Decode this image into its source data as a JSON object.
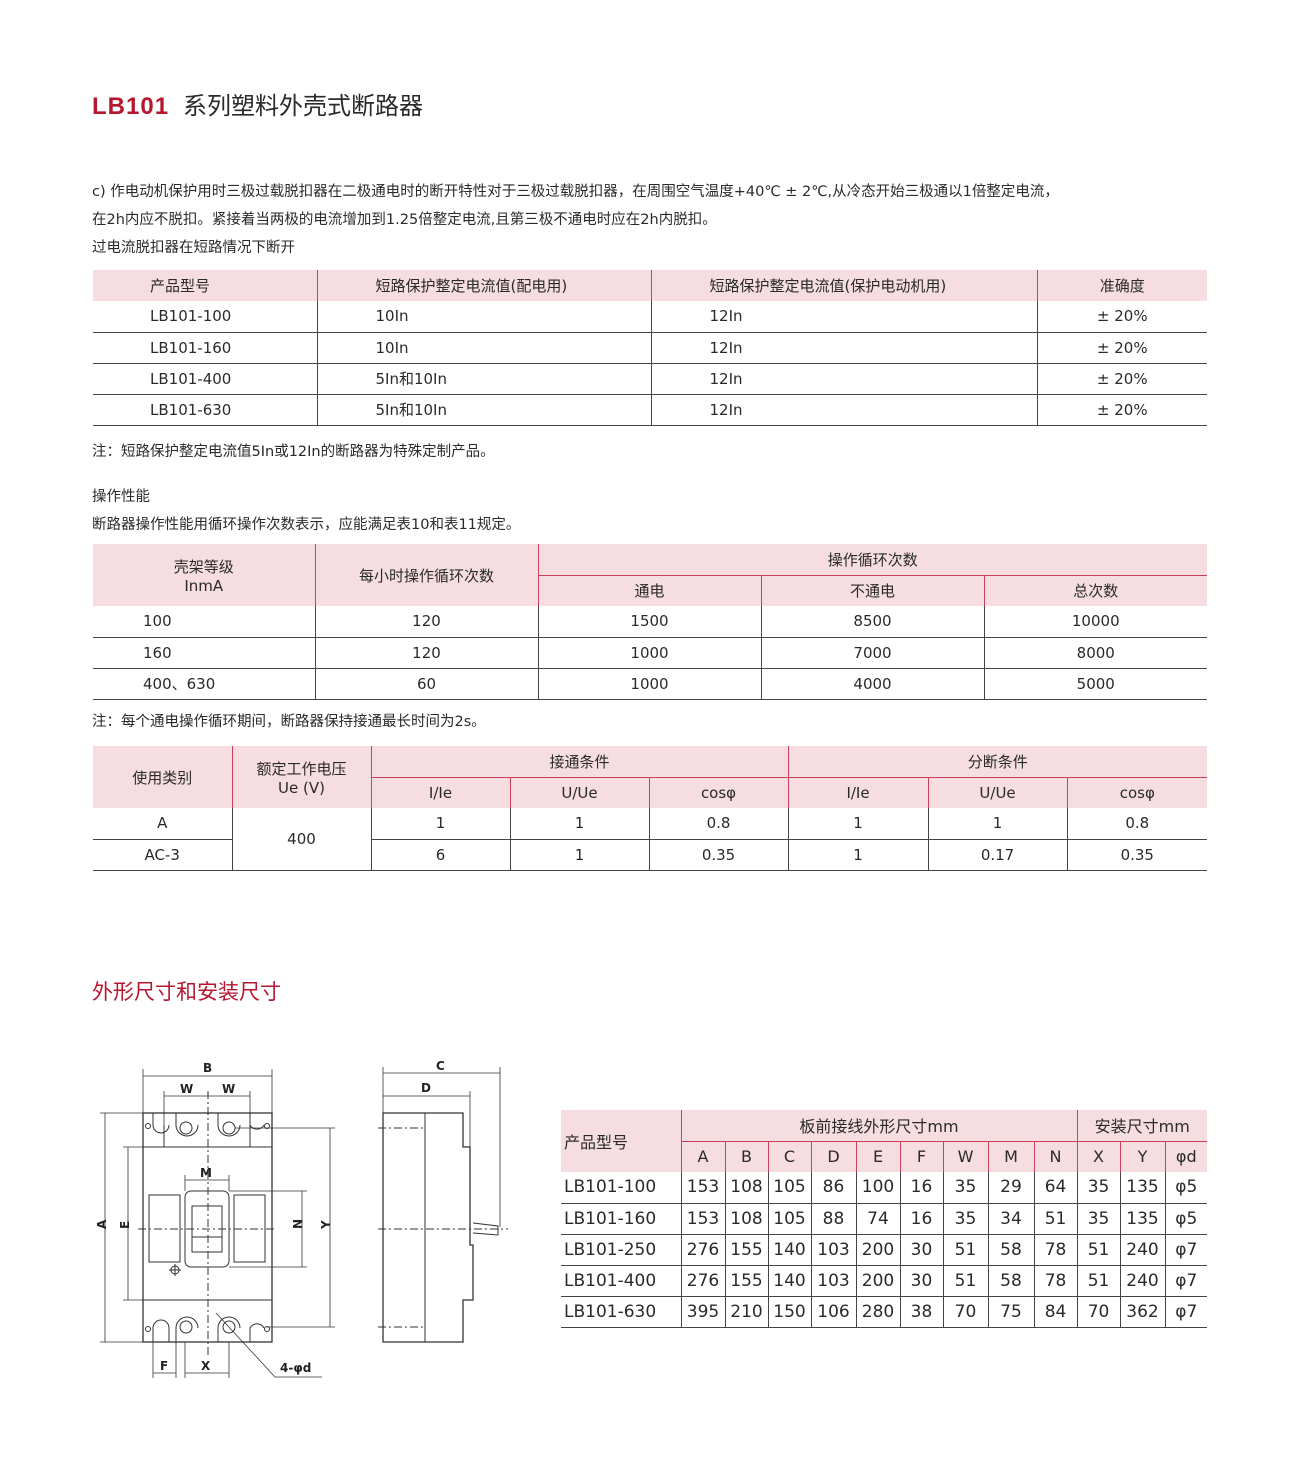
{
  "header": {
    "model": "LB101",
    "title": "系列塑料外壳式断路器"
  },
  "intro": {
    "line1": "c) 作电动机保护用时三极过载脱扣器在二极通电时的断开特性对于三极过载脱扣器，在周围空气温度+40℃ ± 2℃,从冷态开始三极通以1倍整定电流，",
    "line2": "在2h内应不脱扣。紧接着当两极的电流增加到1.25倍整定电流,且第三极不通电时应在2h内脱扣。",
    "line3": "过电流脱扣器在短路情况下断开"
  },
  "table1": {
    "headers": [
      "产品型号",
      "短路保护整定电流值(配电用)",
      "短路保护整定电流值(保护电动机用)",
      "准确度"
    ],
    "rows": [
      [
        "LB101-100",
        "10In",
        "12In",
        "± 20%"
      ],
      [
        "LB101-160",
        "10In",
        "12In",
        "± 20%"
      ],
      [
        "LB101-400",
        "5In和10In",
        "12In",
        "± 20%"
      ],
      [
        "LB101-630",
        "5In和10In",
        "12In",
        "± 20%"
      ]
    ],
    "note": "注：短路保护整定电流值5In或12In的断路器为特殊定制产品。"
  },
  "operation": {
    "heading": "操作性能",
    "desc": "断路器操作性能用循环操作次数表示，应能满足表10和表11规定。"
  },
  "table2": {
    "h_frame": "壳架等级",
    "h_frame2": "InmA",
    "h_perhour": "每小时操作循环次数",
    "h_cycles": "操作循环次数",
    "sub": [
      "通电",
      "不通电",
      "总次数"
    ],
    "rows": [
      [
        "100",
        "120",
        "1500",
        "8500",
        "10000"
      ],
      [
        "160",
        "120",
        "1000",
        "7000",
        "8000"
      ],
      [
        "400、630",
        "60",
        "1000",
        "4000",
        "5000"
      ]
    ],
    "note": "注：每个通电操作循环期间，断路器保持接通最长时间为2s。"
  },
  "table3": {
    "h_category": "使用类别",
    "h_voltage": "额定工作电压",
    "h_voltage2": "Ue (V)",
    "h_make": "接通条件",
    "h_break": "分断条件",
    "sub": [
      "I/Ie",
      "U/Ue",
      "cosφ",
      "I/Ie",
      "U/Ue",
      "cosφ"
    ],
    "voltage": "400",
    "rows": [
      [
        "A",
        "1",
        "1",
        "0.8",
        "1",
        "1",
        "0.8"
      ],
      [
        "AC-3",
        "6",
        "1",
        "0.35",
        "1",
        "0.17",
        "0.35"
      ]
    ]
  },
  "section2": {
    "title": "外形尺寸和安装尺寸"
  },
  "diagram": {
    "labels": {
      "B": "B",
      "W1": "W",
      "W2": "W",
      "A": "A",
      "E": "E",
      "M": "M",
      "N": "N",
      "Y": "Y",
      "F": "F",
      "X": "X",
      "C": "C",
      "D": "D",
      "hole": "4-φd"
    }
  },
  "table4": {
    "h_model": "产品型号",
    "h_outline": "板前接线外形尺寸mm",
    "h_mount": "安装尺寸mm",
    "sub": [
      "A",
      "B",
      "C",
      "D",
      "E",
      "F",
      "W",
      "M",
      "N",
      "X",
      "Y",
      "φd"
    ],
    "rows": [
      [
        "LB101-100",
        "153",
        "108",
        "105",
        "86",
        "100",
        "16",
        "35",
        "29",
        "64",
        "35",
        "135",
        "φ5"
      ],
      [
        "LB101-160",
        "153",
        "108",
        "105",
        "88",
        "74",
        "16",
        "35",
        "34",
        "51",
        "35",
        "135",
        "φ5"
      ],
      [
        "LB101-250",
        "276",
        "155",
        "140",
        "103",
        "200",
        "30",
        "51",
        "58",
        "78",
        "51",
        "240",
        "φ7"
      ],
      [
        "LB101-400",
        "276",
        "155",
        "140",
        "103",
        "200",
        "30",
        "51",
        "58",
        "78",
        "51",
        "240",
        "φ7"
      ],
      [
        "LB101-630",
        "395",
        "210",
        "150",
        "106",
        "280",
        "38",
        "70",
        "75",
        "84",
        "70",
        "362",
        "φ7"
      ]
    ]
  },
  "colors": {
    "accent": "#b5172f",
    "header_bg": "#f5dde2",
    "header_line": "#c9415a"
  }
}
